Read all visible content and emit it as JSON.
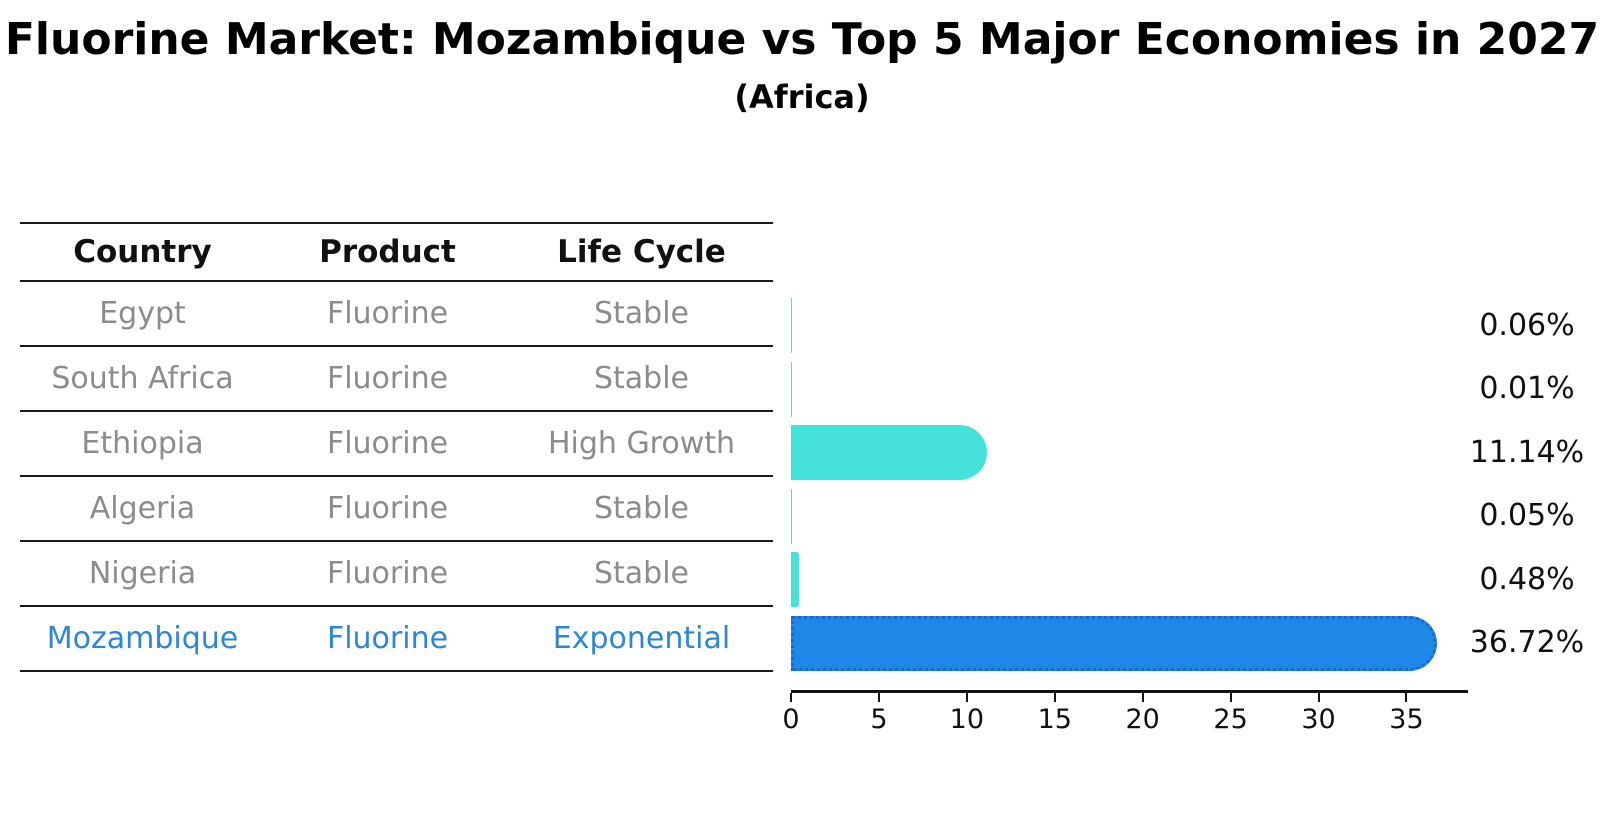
{
  "title": "Fluorine Market: Mozambique vs Top 5 Major Economies in 2027",
  "subtitle": "(Africa)",
  "table": {
    "headers": [
      "Country",
      "Product",
      "Life Cycle"
    ],
    "rows": [
      {
        "country": "Egypt",
        "product": "Fluorine",
        "life_cycle": "Stable"
      },
      {
        "country": "South Africa",
        "product": "Fluorine",
        "life_cycle": "Stable"
      },
      {
        "country": "Ethiopia",
        "product": "Fluorine",
        "life_cycle": "High Growth"
      },
      {
        "country": "Algeria",
        "product": "Fluorine",
        "life_cycle": "Stable"
      },
      {
        "country": "Nigeria",
        "product": "Fluorine",
        "life_cycle": "Stable"
      },
      {
        "country": "Mozambique",
        "product": "Fluorine",
        "life_cycle": "Exponential"
      }
    ],
    "highlight_row": 5
  },
  "chart_data": {
    "type": "bar",
    "orientation": "horizontal",
    "categories": [
      "Egypt",
      "South Africa",
      "Ethiopia",
      "Algeria",
      "Nigeria",
      "Mozambique"
    ],
    "values": [
      0.06,
      0.01,
      11.14,
      0.05,
      0.48,
      36.72
    ],
    "value_labels": [
      "0.06%",
      "0.01%",
      "11.14%",
      "0.05%",
      "0.48%",
      "36.72%"
    ],
    "x_ticks": [
      0,
      5,
      10,
      15,
      20,
      25,
      30,
      35
    ],
    "xlim": [
      0,
      38.5
    ],
    "grid": false,
    "legend": false,
    "bar_colors": [
      "#45e2da",
      "#45e2da",
      "#45e2da",
      "#45e2da",
      "#45e2da",
      "#1e88e8"
    ],
    "highlight_index": 5,
    "highlight_edge_color": "#1a67cf"
  },
  "colors": {
    "bar_cyan": "#45e2da",
    "bar_blue": "#1e88e8",
    "highlight_text": "#2e86d6",
    "row_text": "#8c8c8c",
    "axis_text": "#111111"
  }
}
